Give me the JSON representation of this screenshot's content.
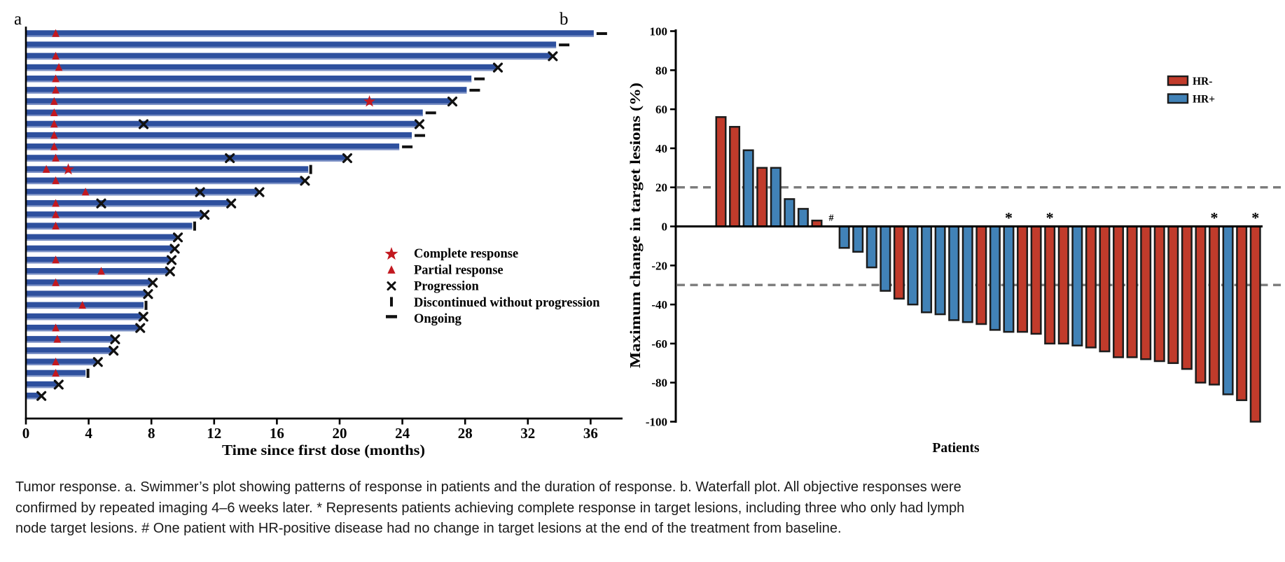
{
  "figure": {
    "panel_a_label": "a",
    "panel_b_label": "b",
    "caption_lines": [
      "Tumor response. a. Swimmer’s plot showing patterns of response in patients and the duration of response. b. Waterfall plot. All objective responses were",
      "confirmed by repeated imaging 4–6 weeks later. * Represents patients achieving complete response in target lesions, including three who only had lymph",
      "node target lesions. # One patient with HR-positive disease had no change in target lesions at the end of the treatment from baseline."
    ]
  },
  "colors": {
    "swimmer_bar": "#2e509e",
    "swimmer_bar_edge": "#7d92c6",
    "response_red": "#c2181f",
    "marker_black": "#111111",
    "hr_negative": "#c13b2b",
    "hr_positive": "#4182b7",
    "bar_outline": "#1c1c1c",
    "dashed_reference": "#7b7b7b",
    "axis": "#000000"
  },
  "chart_data": [
    {
      "type": "swimmer",
      "panel": "a",
      "xlabel": "Time since first dose (months)",
      "xticks": [
        0,
        4,
        8,
        12,
        16,
        20,
        24,
        28,
        32,
        36
      ],
      "xlim": [
        0,
        38.2
      ],
      "legend": [
        {
          "symbol": "star",
          "label": "Complete response"
        },
        {
          "symbol": "triangle",
          "label": "Partial response"
        },
        {
          "symbol": "x",
          "label": "Progression"
        },
        {
          "symbol": "vbar",
          "label": "Discontinued without progression"
        },
        {
          "symbol": "dash",
          "label": "Ongoing"
        }
      ],
      "patients": [
        {
          "duration_months": 36.2,
          "end": "ongoing",
          "partial_response_at": [
            1.9
          ],
          "complete_response_at": [],
          "progression_at": []
        },
        {
          "duration_months": 33.8,
          "end": "ongoing",
          "partial_response_at": [],
          "complete_response_at": [],
          "progression_at": []
        },
        {
          "duration_months": 33.5,
          "end": "progression",
          "partial_response_at": [
            1.9
          ],
          "complete_response_at": [],
          "progression_at": []
        },
        {
          "duration_months": 30.0,
          "end": "progression",
          "partial_response_at": [
            2.1
          ],
          "complete_response_at": [],
          "progression_at": []
        },
        {
          "duration_months": 28.4,
          "end": "ongoing",
          "partial_response_at": [
            1.9
          ],
          "complete_response_at": [],
          "progression_at": []
        },
        {
          "duration_months": 28.1,
          "end": "ongoing",
          "partial_response_at": [
            1.9
          ],
          "complete_response_at": [],
          "progression_at": []
        },
        {
          "duration_months": 27.1,
          "end": "progression",
          "partial_response_at": [
            1.8
          ],
          "complete_response_at": [
            21.9
          ],
          "progression_at": []
        },
        {
          "duration_months": 25.3,
          "end": "ongoing",
          "partial_response_at": [
            1.8
          ],
          "complete_response_at": [],
          "progression_at": []
        },
        {
          "duration_months": 25.0,
          "end": "progression",
          "partial_response_at": [
            1.8
          ],
          "complete_response_at": [],
          "progression_at": [
            7.5
          ]
        },
        {
          "duration_months": 24.6,
          "end": "ongoing",
          "partial_response_at": [
            1.8
          ],
          "complete_response_at": [],
          "progression_at": []
        },
        {
          "duration_months": 23.8,
          "end": "ongoing",
          "partial_response_at": [
            1.8
          ],
          "complete_response_at": [],
          "progression_at": []
        },
        {
          "duration_months": 20.4,
          "end": "progression",
          "partial_response_at": [
            1.9
          ],
          "complete_response_at": [],
          "progression_at": [
            13.0
          ]
        },
        {
          "duration_months": 18.0,
          "end": "discontinued",
          "partial_response_at": [
            1.3
          ],
          "complete_response_at": [
            2.7
          ],
          "progression_at": []
        },
        {
          "duration_months": 17.7,
          "end": "progression",
          "partial_response_at": [
            1.9
          ],
          "complete_response_at": [],
          "progression_at": []
        },
        {
          "duration_months": 14.8,
          "end": "progression",
          "partial_response_at": [
            3.8
          ],
          "complete_response_at": [],
          "progression_at": [
            11.1
          ]
        },
        {
          "duration_months": 13.0,
          "end": "progression",
          "partial_response_at": [
            1.9
          ],
          "complete_response_at": [],
          "progression_at": [
            4.8
          ]
        },
        {
          "duration_months": 11.3,
          "end": "progression",
          "partial_response_at": [
            1.9
          ],
          "complete_response_at": [],
          "progression_at": []
        },
        {
          "duration_months": 10.6,
          "end": "discontinued",
          "partial_response_at": [
            1.9
          ],
          "complete_response_at": [],
          "progression_at": []
        },
        {
          "duration_months": 9.6,
          "end": "progression",
          "partial_response_at": [],
          "complete_response_at": [],
          "progression_at": []
        },
        {
          "duration_months": 9.4,
          "end": "progression",
          "partial_response_at": [],
          "complete_response_at": [],
          "progression_at": []
        },
        {
          "duration_months": 9.2,
          "end": "progression",
          "partial_response_at": [
            1.9
          ],
          "complete_response_at": [],
          "progression_at": []
        },
        {
          "duration_months": 9.1,
          "end": "progression",
          "partial_response_at": [
            4.8
          ],
          "complete_response_at": [],
          "progression_at": []
        },
        {
          "duration_months": 8.0,
          "end": "progression",
          "partial_response_at": [
            1.9
          ],
          "complete_response_at": [],
          "progression_at": []
        },
        {
          "duration_months": 7.7,
          "end": "progression",
          "partial_response_at": [],
          "complete_response_at": [],
          "progression_at": []
        },
        {
          "duration_months": 7.5,
          "end": "discontinued",
          "partial_response_at": [
            3.6
          ],
          "complete_response_at": [],
          "progression_at": []
        },
        {
          "duration_months": 7.4,
          "end": "progression",
          "partial_response_at": [],
          "complete_response_at": [],
          "progression_at": []
        },
        {
          "duration_months": 7.2,
          "end": "progression",
          "partial_response_at": [
            1.9
          ],
          "complete_response_at": [],
          "progression_at": []
        },
        {
          "duration_months": 5.6,
          "end": "progression",
          "partial_response_at": [
            2.0
          ],
          "complete_response_at": [],
          "progression_at": []
        },
        {
          "duration_months": 5.5,
          "end": "progression",
          "partial_response_at": [],
          "complete_response_at": [],
          "progression_at": []
        },
        {
          "duration_months": 4.5,
          "end": "progression",
          "partial_response_at": [
            1.9
          ],
          "complete_response_at": [],
          "progression_at": []
        },
        {
          "duration_months": 3.8,
          "end": "discontinued",
          "partial_response_at": [
            1.9
          ],
          "complete_response_at": [],
          "progression_at": []
        },
        {
          "duration_months": 2.0,
          "end": "progression",
          "partial_response_at": [],
          "complete_response_at": [],
          "progression_at": []
        },
        {
          "duration_months": 0.9,
          "end": "progression",
          "partial_response_at": [],
          "complete_response_at": [],
          "progression_at": []
        }
      ]
    },
    {
      "type": "waterfall",
      "panel": "b",
      "ylabel": "Maximum change in target lesions (%)",
      "xlabel": "Patients",
      "yticks": [
        100,
        80,
        60,
        40,
        20,
        0,
        -20,
        -40,
        -60,
        -80,
        -100
      ],
      "ylim": [
        -100,
        100
      ],
      "reference_lines": [
        20,
        -30
      ],
      "legend": [
        {
          "label": "HR-",
          "color_key": "hr_negative"
        },
        {
          "label": "HR+",
          "color_key": "hr_positive"
        }
      ],
      "bars": [
        {
          "value": 56,
          "group": "HR-"
        },
        {
          "value": 51,
          "group": "HR-"
        },
        {
          "value": 39,
          "group": "HR+"
        },
        {
          "value": 30,
          "group": "HR-"
        },
        {
          "value": 30,
          "group": "HR+"
        },
        {
          "value": 14,
          "group": "HR+"
        },
        {
          "value": 9,
          "group": "HR+"
        },
        {
          "value": 3,
          "group": "HR-"
        },
        {
          "value": 0,
          "group": "HR+",
          "mark": "#"
        },
        {
          "value": -11,
          "group": "HR+"
        },
        {
          "value": -13,
          "group": "HR+"
        },
        {
          "value": -21,
          "group": "HR+"
        },
        {
          "value": -33,
          "group": "HR+"
        },
        {
          "value": -37,
          "group": "HR-"
        },
        {
          "value": -40,
          "group": "HR+"
        },
        {
          "value": -44,
          "group": "HR+"
        },
        {
          "value": -45,
          "group": "HR+"
        },
        {
          "value": -48,
          "group": "HR+"
        },
        {
          "value": -49,
          "group": "HR+"
        },
        {
          "value": -50,
          "group": "HR-"
        },
        {
          "value": -53,
          "group": "HR+"
        },
        {
          "value": -54,
          "group": "HR+",
          "mark": "*"
        },
        {
          "value": -54,
          "group": "HR-"
        },
        {
          "value": -55,
          "group": "HR-"
        },
        {
          "value": -60,
          "group": "HR-",
          "mark": "*"
        },
        {
          "value": -60,
          "group": "HR-"
        },
        {
          "value": -61,
          "group": "HR+"
        },
        {
          "value": -62,
          "group": "HR-"
        },
        {
          "value": -64,
          "group": "HR-"
        },
        {
          "value": -67,
          "group": "HR-"
        },
        {
          "value": -67,
          "group": "HR-"
        },
        {
          "value": -68,
          "group": "HR-"
        },
        {
          "value": -69,
          "group": "HR-"
        },
        {
          "value": -70,
          "group": "HR-"
        },
        {
          "value": -73,
          "group": "HR-"
        },
        {
          "value": -80,
          "group": "HR-"
        },
        {
          "value": -81,
          "group": "HR-",
          "mark": "*"
        },
        {
          "value": -86,
          "group": "HR+"
        },
        {
          "value": -89,
          "group": "HR-"
        },
        {
          "value": -100,
          "group": "HR-",
          "mark": "*"
        }
      ]
    }
  ]
}
